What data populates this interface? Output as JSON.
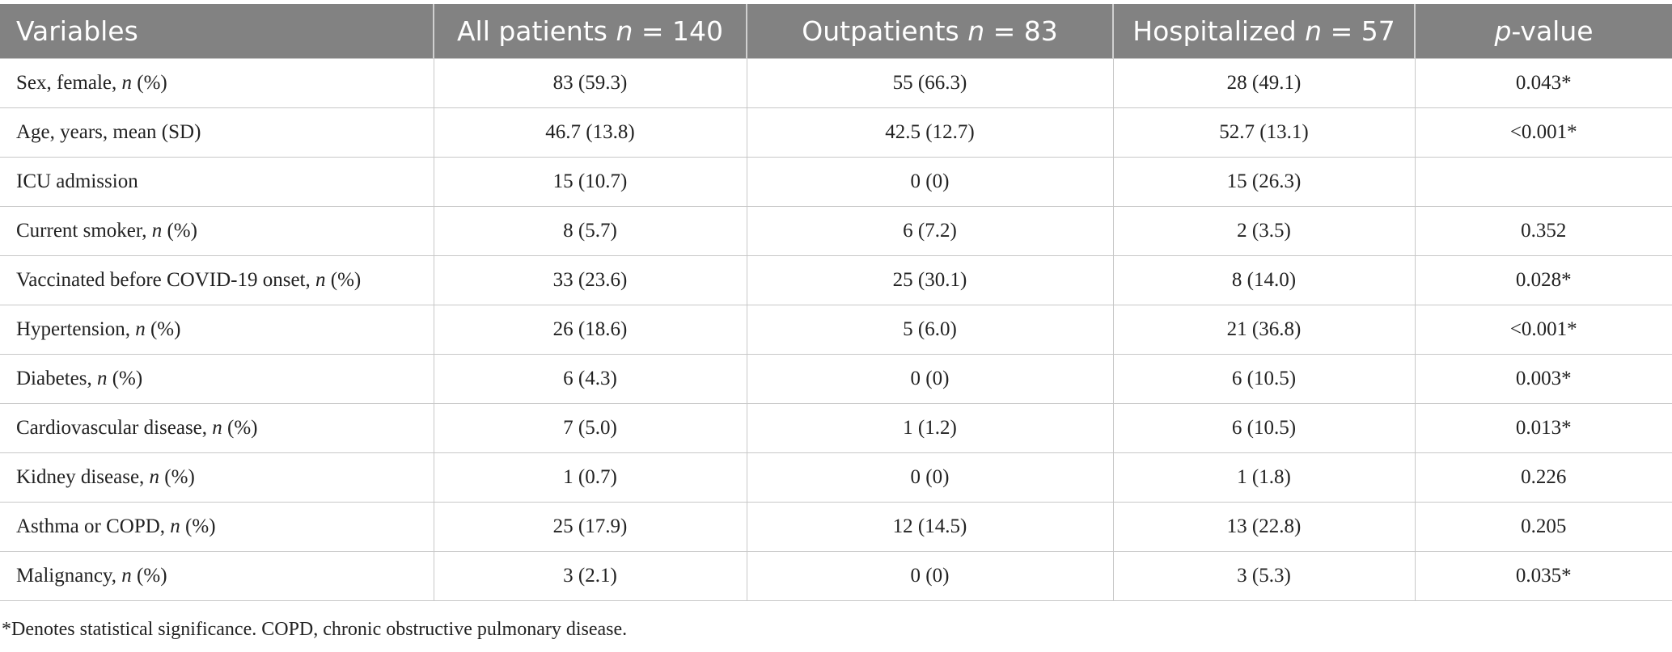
{
  "table": {
    "header": [
      "Variables",
      "All patients n = 140",
      "Outpatients n = 83",
      "Hospitalized n = 57",
      "p-value"
    ],
    "rows": [
      [
        "Sex, female, n (%)",
        "83 (59.3)",
        "55 (66.3)",
        "28 (49.1)",
        "0.043*"
      ],
      [
        "Age, years, mean (SD)",
        "46.7 (13.8)",
        "42.5 (12.7)",
        "52.7 (13.1)",
        "<0.001*"
      ],
      [
        "ICU admission",
        "15 (10.7)",
        "0 (0)",
        "15 (26.3)",
        null
      ],
      [
        "Current smoker, n (%)",
        "8 (5.7)",
        "6 (7.2)",
        "2 (3.5)",
        "0.352"
      ],
      [
        "Vaccinated before COVID-19 onset, n (%)",
        "33 (23.6)",
        "25 (30.1)",
        "8 (14.0)",
        "0.028*"
      ],
      [
        "Hypertension, n (%)",
        "26 (18.6)",
        "5 (6.0)",
        "21 (36.8)",
        "<0.001*"
      ],
      [
        "Diabetes, n (%)",
        "6 (4.3)",
        "0 (0)",
        "6 (10.5)",
        "0.003*"
      ],
      [
        "Cardiovascular disease, n (%)",
        "7 (5.0)",
        "1 (1.2)",
        "6 (10.5)",
        "0.013*"
      ],
      [
        "Kidney disease, n (%)",
        "1 (0.7)",
        "0 (0)",
        "1 (1.8)",
        "0.226"
      ],
      [
        "Asthma or COPD, n (%)",
        "25 (17.9)",
        "12 (14.5)",
        "13 (22.8)",
        "0.205"
      ],
      [
        "Malignancy, n (%)",
        "3 (2.1)",
        "0 (0)",
        "3 (5.3)",
        "0.035*"
      ]
    ],
    "footnote": "*Denotes statistical significance. COPD, chronic obstructive pulmonary disease."
  }
}
